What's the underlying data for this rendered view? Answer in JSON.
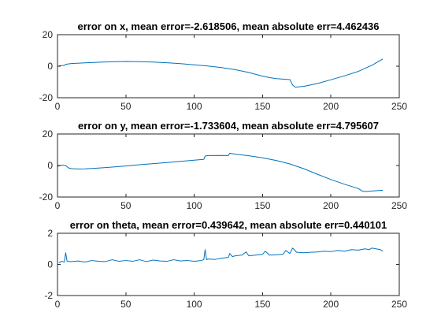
{
  "figure": {
    "background": "#ffffff",
    "axis_color": "#262626",
    "series_color": "#0072bd"
  },
  "chart_data": [
    {
      "type": "line",
      "title": "error on x, mean error=-2.618506, mean absolute err=4.462436",
      "xlabel": "",
      "ylabel": "",
      "xlim": [
        0,
        250
      ],
      "ylim": [
        -20,
        20
      ],
      "xticks": [
        0,
        50,
        100,
        150,
        200,
        250
      ],
      "yticks": [
        -20,
        0,
        20
      ],
      "xtick_labels": [
        "0",
        "50",
        "100",
        "150",
        "200",
        "250"
      ],
      "ytick_labels": [
        "-20",
        "0",
        "20"
      ],
      "grid": false,
      "series": [
        {
          "x": [
            1,
            5,
            6,
            10,
            20,
            30,
            40,
            50,
            60,
            70,
            80,
            90,
            100,
            110,
            120,
            130,
            140,
            150,
            155,
            160,
            165,
            170,
            172,
            174,
            180,
            190,
            200,
            210,
            220,
            230,
            238
          ],
          "y": [
            0.3,
            0.5,
            1.2,
            1.7,
            2.1,
            2.5,
            2.8,
            3.0,
            2.9,
            2.6,
            2.2,
            1.6,
            0.9,
            0.1,
            -0.9,
            -2.2,
            -4.0,
            -6.3,
            -7.2,
            -7.9,
            -8.2,
            -8.5,
            -12.0,
            -13.3,
            -12.8,
            -11.0,
            -8.6,
            -6.1,
            -3.3,
            0.6,
            4.6
          ]
        }
      ]
    },
    {
      "type": "line",
      "title": "error on y, mean error=-1.733604, mean absolute err=4.795607",
      "xlabel": "",
      "ylabel": "",
      "xlim": [
        0,
        250
      ],
      "ylim": [
        -20,
        20
      ],
      "xticks": [
        0,
        50,
        100,
        150,
        200,
        250
      ],
      "yticks": [
        -20,
        0,
        20
      ],
      "xtick_labels": [
        "0",
        "50",
        "100",
        "150",
        "200",
        "250"
      ],
      "ytick_labels": [
        "-20",
        "0",
        "20"
      ],
      "grid": false,
      "series": [
        {
          "x": [
            0,
            3,
            6,
            8,
            10,
            15,
            20,
            30,
            40,
            50,
            60,
            70,
            80,
            90,
            100,
            107,
            108,
            110,
            120,
            125,
            126,
            128,
            130,
            140,
            150,
            160,
            170,
            180,
            190,
            200,
            210,
            220,
            223,
            225,
            230,
            235,
            238
          ],
          "y": [
            -0.5,
            0.2,
            0.0,
            -1.5,
            -2.0,
            -2.2,
            -2.1,
            -1.6,
            -1.0,
            -0.3,
            0.5,
            1.2,
            1.9,
            2.6,
            3.4,
            3.9,
            6.0,
            6.3,
            6.4,
            6.3,
            7.8,
            7.5,
            7.2,
            6.2,
            4.9,
            3.2,
            1.0,
            -2.0,
            -5.5,
            -8.9,
            -11.9,
            -14.6,
            -16.3,
            -16.5,
            -16.2,
            -15.9,
            -15.7
          ]
        }
      ]
    },
    {
      "type": "line",
      "title": "error on theta, mean error=0.439642, mean absolute err=0.440101",
      "xlabel": "",
      "ylabel": "",
      "xlim": [
        0,
        250
      ],
      "ylim": [
        -2,
        2
      ],
      "xticks": [
        0,
        50,
        100,
        150,
        200,
        250
      ],
      "yticks": [
        -2,
        0,
        2
      ],
      "xtick_labels": [
        "0",
        "50",
        "100",
        "150",
        "200",
        "250"
      ],
      "ytick_labels": [
        "-2",
        "0",
        "2"
      ],
      "grid": false,
      "series": [
        {
          "x": [
            1,
            3,
            5,
            6,
            7,
            10,
            15,
            20,
            25,
            30,
            35,
            40,
            45,
            50,
            55,
            60,
            65,
            70,
            75,
            80,
            85,
            90,
            95,
            100,
            105,
            107,
            108,
            109,
            110,
            115,
            120,
            125,
            126,
            128,
            130,
            135,
            138,
            140,
            145,
            150,
            152,
            155,
            160,
            165,
            167,
            170,
            172,
            175,
            180,
            185,
            190,
            195,
            200,
            205,
            210,
            215,
            220,
            225,
            228,
            230,
            233,
            236,
            238
          ],
          "y": [
            0.1,
            0.2,
            0.15,
            0.75,
            0.2,
            0.18,
            0.22,
            0.15,
            0.25,
            0.2,
            0.18,
            0.3,
            0.2,
            0.25,
            0.2,
            0.3,
            0.18,
            0.28,
            0.22,
            0.2,
            0.3,
            0.22,
            0.25,
            0.2,
            0.25,
            0.3,
            0.95,
            0.3,
            0.35,
            0.32,
            0.4,
            0.45,
            0.7,
            0.5,
            0.55,
            0.6,
            0.8,
            0.55,
            0.6,
            0.65,
            0.85,
            0.6,
            0.62,
            0.65,
            0.9,
            0.7,
            1.05,
            0.78,
            0.75,
            0.78,
            0.8,
            0.85,
            0.82,
            0.9,
            0.85,
            0.95,
            0.92,
            1.0,
            0.95,
            1.05,
            1.0,
            0.95,
            0.85
          ]
        }
      ]
    }
  ]
}
